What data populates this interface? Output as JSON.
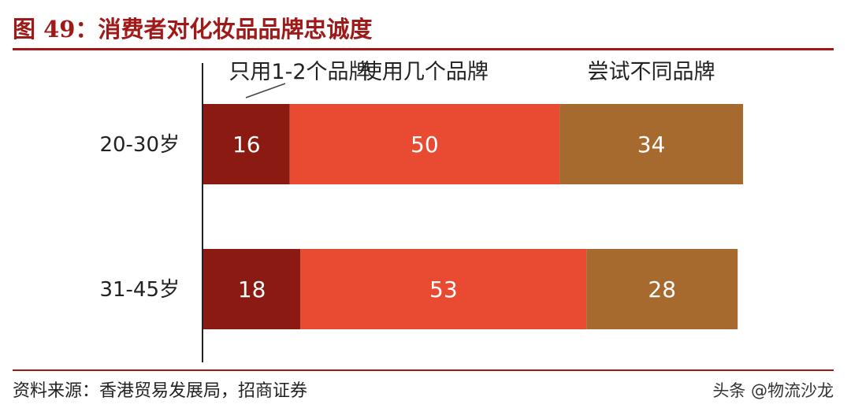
{
  "figure": {
    "title": "图 49：消费者对化妆品品牌忠诚度",
    "source": "资料来源：香港贸易发展局，招商证券",
    "watermark": "头条 @物流沙龙"
  },
  "colors": {
    "accent": "#a01919",
    "series": [
      "#8b1a12",
      "#e84a32",
      "#a76a2e"
    ]
  },
  "chart_data": {
    "type": "bar",
    "orientation": "horizontal",
    "stacked": true,
    "categories": [
      "20-30岁",
      "31-45岁"
    ],
    "series": [
      {
        "name": "只用1-2个品牌",
        "values": [
          16,
          18
        ]
      },
      {
        "name": "使用几个品牌",
        "values": [
          50,
          53
        ]
      },
      {
        "name": "尝试不同品牌",
        "values": [
          34,
          28
        ]
      }
    ],
    "data_labels": true,
    "legend_position": "top",
    "grid": false
  }
}
